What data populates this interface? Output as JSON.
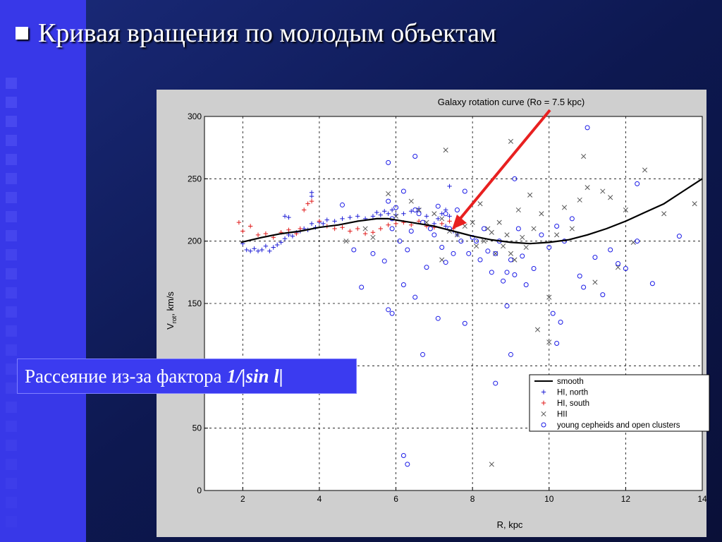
{
  "slide": {
    "title": "Кривая вращения по молодым объектам",
    "note_prefix": "Рассеяние из-за фактора",
    "note_formula_a": "1/",
    "note_formula_b": "|sin l",
    "note_formula_c": "|",
    "colors": {
      "background": "#0c1442",
      "accent": "#3a3aee",
      "note_box": "#3b3bf0",
      "arrow": "#e82020"
    }
  },
  "chart_data": {
    "type": "scatter",
    "title": "Galaxy rotation curve (Ro = 7.5 kpc)",
    "xlabel": "R, kpc",
    "ylabel_main": "V",
    "ylabel_sub": "rot",
    "ylabel_unit": ", km/s",
    "xlim": [
      1,
      14
    ],
    "ylim": [
      0,
      300
    ],
    "xticks": [
      2,
      4,
      6,
      8,
      10,
      12,
      14
    ],
    "yticks": [
      0,
      50,
      100,
      150,
      200,
      250,
      300
    ],
    "grid": true,
    "legend_position": "bottom-right",
    "series": [
      {
        "name": "smooth",
        "marker": "line",
        "color": "#000000",
        "x": [
          1.95,
          2.5,
          3,
          3.5,
          4,
          4.5,
          5,
          5.5,
          5.8,
          6.2,
          6.6,
          7,
          7.5,
          8,
          8.5,
          9,
          9.5,
          10,
          10.5,
          11,
          11.5,
          12,
          12.5,
          13,
          13.5,
          14
        ],
        "y": [
          199,
          203,
          206,
          208,
          211,
          213,
          216,
          218,
          218,
          216,
          214,
          212,
          208,
          204,
          201,
          199,
          198,
          199,
          201,
          205,
          210,
          216,
          223,
          230,
          240,
          250
        ]
      },
      {
        "name": "HI, north",
        "marker": "plus",
        "color": "#1f1fd6",
        "x": [
          2.0,
          2.1,
          2.2,
          2.3,
          2.4,
          2.5,
          2.6,
          2.7,
          2.8,
          2.9,
          3.0,
          3.1,
          3.2,
          3.3,
          3.4,
          3.5,
          3.6,
          3.7,
          3.8,
          3.9,
          4.0,
          4.1,
          4.2,
          4.4,
          4.6,
          4.8,
          5.0,
          5.2,
          5.4,
          5.5,
          5.6,
          5.7,
          5.8,
          5.9,
          6.0,
          6.2,
          6.4,
          6.6,
          6.8,
          7.0,
          7.1,
          7.2,
          7.3,
          7.4,
          7.5,
          7.6,
          3.1,
          3.2,
          3.8,
          3.8,
          7.4,
          7.3
        ],
        "y": [
          198,
          193,
          192,
          194,
          192,
          193,
          196,
          192,
          195,
          197,
          199,
          202,
          205,
          204,
          207,
          208,
          210,
          209,
          214,
          211,
          215,
          214,
          217,
          216,
          218,
          219,
          220,
          218,
          220,
          223,
          221,
          224,
          222,
          225,
          221,
          222,
          224,
          226,
          220,
          214,
          218,
          222,
          212,
          220,
          208,
          205,
          220,
          219,
          236,
          239,
          244,
          225
        ]
      },
      {
        "name": "HI, south",
        "marker": "plus",
        "color": "#e01b1b",
        "x": [
          1.9,
          2.0,
          2.2,
          2.4,
          2.6,
          2.8,
          3.0,
          3.2,
          3.4,
          3.5,
          3.6,
          3.7,
          3.8,
          4.0,
          4.2,
          4.4,
          4.6,
          4.8,
          5.0,
          5.2,
          5.4,
          5.6,
          5.8,
          6.0,
          6.2,
          6.4,
          6.6,
          6.8,
          7.0,
          7.2,
          7.4,
          7.5
        ],
        "y": [
          215,
          208,
          212,
          205,
          206,
          203,
          207,
          209,
          206,
          210,
          225,
          230,
          232,
          216,
          212,
          210,
          211,
          208,
          210,
          206,
          207,
          210,
          213,
          214,
          215,
          213,
          216,
          212,
          211,
          214,
          216,
          210
        ]
      },
      {
        "name": "HII",
        "marker": "x",
        "color": "#555555",
        "x": [
          4.7,
          5.2,
          5.4,
          5.8,
          6.0,
          6.4,
          6.6,
          6.8,
          7.0,
          7.2,
          7.3,
          7.4,
          7.6,
          7.8,
          8.0,
          8.1,
          8.2,
          8.3,
          8.4,
          8.5,
          8.6,
          8.7,
          8.8,
          8.9,
          9.0,
          9.1,
          9.2,
          9.3,
          9.4,
          9.5,
          9.6,
          9.8,
          10.0,
          10.2,
          10.4,
          10.6,
          10.8,
          11.0,
          11.2,
          11.4,
          11.6,
          11.8,
          12.0,
          12.2,
          12.5,
          13.0,
          13.8,
          7.2,
          9.0,
          10.9,
          8.5,
          9.7,
          10.0
        ],
        "y": [
          200,
          210,
          203,
          238,
          220,
          232,
          225,
          215,
          222,
          218,
          273,
          208,
          205,
          212,
          215,
          196,
          230,
          200,
          210,
          207,
          190,
          215,
          196,
          205,
          280,
          185,
          225,
          203,
          195,
          237,
          210,
          222,
          155,
          205,
          227,
          210,
          233,
          243,
          167,
          240,
          235,
          179,
          225,
          199,
          257,
          222,
          230,
          185,
          190,
          268,
          21,
          129,
          119
        ]
      },
      {
        "name": "young cepheids and open clusters",
        "marker": "o",
        "color": "#1a1ae6",
        "x": [
          4.6,
          4.9,
          5.1,
          5.4,
          5.7,
          5.8,
          5.9,
          6.0,
          6.1,
          6.2,
          6.3,
          6.4,
          6.5,
          6.6,
          6.7,
          6.8,
          6.9,
          7.0,
          7.1,
          7.2,
          7.3,
          7.4,
          7.5,
          7.6,
          7.7,
          7.8,
          7.9,
          8.0,
          8.1,
          8.2,
          8.3,
          8.4,
          8.5,
          8.6,
          8.7,
          8.8,
          8.9,
          9.0,
          9.1,
          9.2,
          9.3,
          9.4,
          9.6,
          9.8,
          10.0,
          10.2,
          10.4,
          10.6,
          10.8,
          11.0,
          11.2,
          11.4,
          11.6,
          11.8,
          12.0,
          12.3,
          12.7,
          13.4,
          5.8,
          5.8,
          5.9,
          6.2,
          6.5,
          6.7,
          7.1,
          7.8,
          8.6,
          9.0,
          10.1,
          10.3,
          10.9,
          12.3,
          6.3,
          6.2,
          9.1,
          6.5,
          5.9,
          10.2,
          7.3,
          8.9
        ],
        "y": [
          229,
          193,
          163,
          190,
          184,
          232,
          210,
          227,
          200,
          165,
          193,
          208,
          225,
          222,
          215,
          179,
          210,
          205,
          228,
          195,
          222,
          210,
          190,
          225,
          200,
          240,
          190,
          203,
          200,
          185,
          210,
          192,
          175,
          190,
          200,
          168,
          175,
          185,
          173,
          210,
          188,
          165,
          178,
          205,
          195,
          212,
          200,
          218,
          172,
          291,
          187,
          157,
          193,
          182,
          178,
          246,
          166,
          204,
          263,
          145,
          142,
          240,
          268,
          109,
          138,
          134,
          86,
          109,
          142,
          135,
          163,
          200,
          21,
          28,
          250,
          155,
          218,
          118,
          183,
          148
        ]
      }
    ]
  }
}
